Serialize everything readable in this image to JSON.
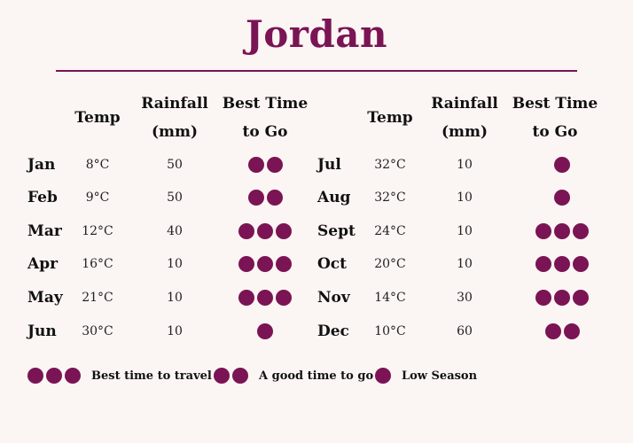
{
  "title": "Jordan",
  "headers": {
    "temp": "Temp",
    "rainfall_line1": "Rainfall",
    "rainfall_line2": "(mm)",
    "best_line1": "Best Time",
    "best_line2": "to Go"
  },
  "colors": {
    "accent": "#7a1454",
    "background": "#fbf5f3"
  },
  "months_left": [
    {
      "month": "Jan",
      "temp": "8°C",
      "rainfall": "50",
      "best": 2
    },
    {
      "month": "Feb",
      "temp": "9°C",
      "rainfall": "50",
      "best": 2
    },
    {
      "month": "Mar",
      "temp": "12°C",
      "rainfall": "40",
      "best": 3
    },
    {
      "month": "Apr",
      "temp": "16°C",
      "rainfall": "10",
      "best": 3
    },
    {
      "month": "May",
      "temp": "21°C",
      "rainfall": "10",
      "best": 3
    },
    {
      "month": "Jun",
      "temp": "30°C",
      "rainfall": "10",
      "best": 1
    }
  ],
  "months_right": [
    {
      "month": "Jul",
      "temp": "32°C",
      "rainfall": "10",
      "best": 1
    },
    {
      "month": "Aug",
      "temp": "32°C",
      "rainfall": "10",
      "best": 1
    },
    {
      "month": "Sept",
      "temp": "24°C",
      "rainfall": "10",
      "best": 3
    },
    {
      "month": "Oct",
      "temp": "20°C",
      "rainfall": "10",
      "best": 3
    },
    {
      "month": "Nov",
      "temp": "14°C",
      "rainfall": "30",
      "best": 3
    },
    {
      "month": "Dec",
      "temp": "10°C",
      "rainfall": "60",
      "best": 2
    }
  ],
  "legend": [
    {
      "dots": 3,
      "label": "Best time to travel"
    },
    {
      "dots": 2,
      "label": "A good time to go"
    },
    {
      "dots": 1,
      "label": "Low Season"
    }
  ]
}
